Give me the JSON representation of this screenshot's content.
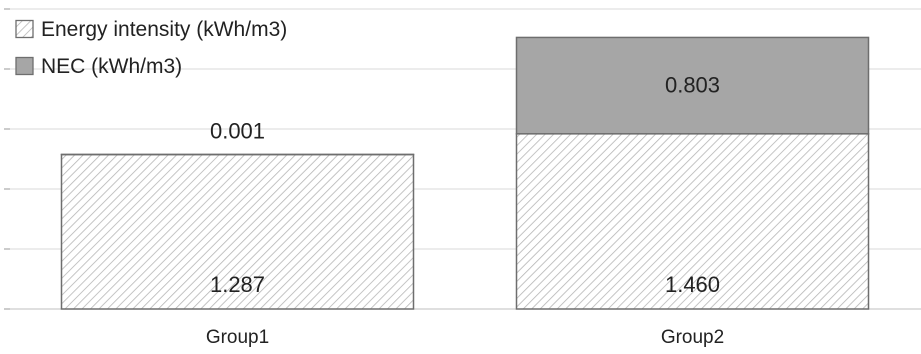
{
  "chart_data": {
    "type": "bar",
    "stacked": true,
    "categories": [
      "Group1",
      "Group2"
    ],
    "series": [
      {
        "name": "Energy intensity (kWh/m3)",
        "values": [
          1.287,
          1.46
        ],
        "labels": [
          "1.287",
          "1.460"
        ],
        "fill": "hatch"
      },
      {
        "name": "NEC (kWh/m3)",
        "values": [
          0.001,
          0.803
        ],
        "labels": [
          "0.001",
          "0.803"
        ],
        "fill": "#a6a6a6"
      }
    ],
    "ylim": [
      0,
      2.5
    ],
    "grid": true,
    "legend": "top-left",
    "colors": {
      "hatch_line": "#b5b5b5",
      "nec_fill": "#a6a6a6",
      "border": "#6e6e6e",
      "grid": "#d9d9d9"
    }
  }
}
